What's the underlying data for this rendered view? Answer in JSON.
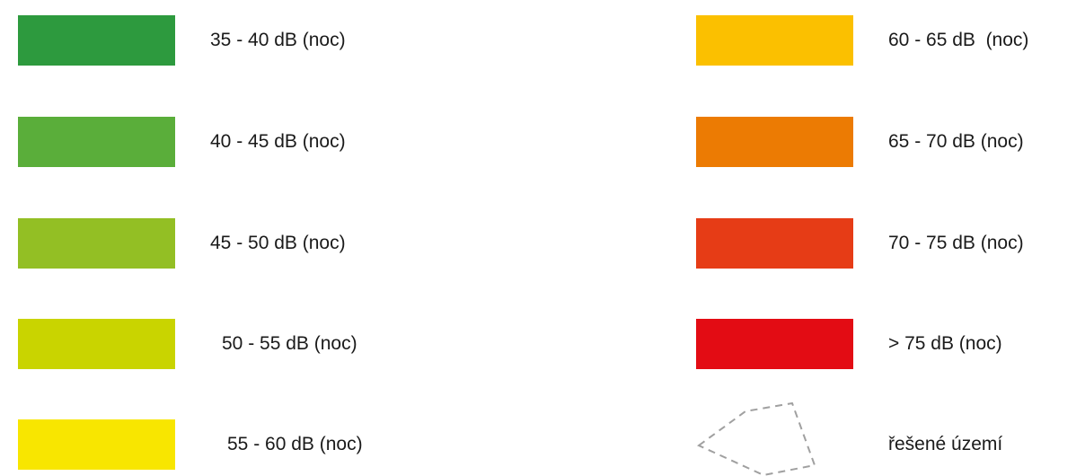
{
  "legend": {
    "left_column": [
      {
        "label": "35 - 40 dB (noc)",
        "color": "#2d9a3e"
      },
      {
        "label": "40 - 45 dB (noc)",
        "color": "#5aae3a"
      },
      {
        "label": "45 - 50 dB (noc)",
        "color": "#93bf24"
      },
      {
        "label": "50 - 55 dB (noc)",
        "color": "#c9d400"
      },
      {
        "label": "55 - 60 dB (noc)",
        "color": "#f8e600"
      }
    ],
    "right_column": [
      {
        "label": "60 - 65 dB  (noc)",
        "color": "#fbc000"
      },
      {
        "label": "65 - 70 dB (noc)",
        "color": "#ec7b03"
      },
      {
        "label": "70 - 75 dB (noc)",
        "color": "#e63c16"
      },
      {
        "label": "> 75 dB (noc)",
        "color": "#e30c14"
      }
    ],
    "area_item": {
      "label": "řešené území",
      "icon": "dashed-boundary-icon",
      "stroke_color": "#a0a0a0"
    }
  }
}
